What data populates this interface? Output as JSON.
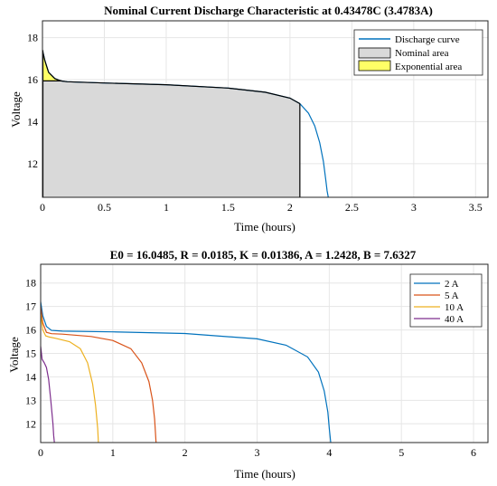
{
  "chart_data": [
    {
      "type": "line",
      "title": "Nominal Current Discharge Characteristic at 0.43478C (3.4783A)",
      "xlabel": "Time (hours)",
      "ylabel": "Voltage",
      "xlim": [
        0,
        3.6
      ],
      "ylim": [
        10.4,
        18.8
      ],
      "xticks": [
        0,
        0.5,
        1,
        1.5,
        2,
        2.5,
        3,
        3.5
      ],
      "xtick_labels": [
        "0",
        "0.5",
        "1",
        "1.5",
        "2",
        "2.5",
        "3",
        "3.5"
      ],
      "yticks": [
        12,
        14,
        16,
        18
      ],
      "ytick_labels": [
        "12",
        "14",
        "16",
        "18"
      ],
      "grid": true,
      "legend_position": "top-right",
      "series": [
        {
          "name": "Discharge curve",
          "color": "#0072BD",
          "x": [
            0,
            0.02,
            0.05,
            0.1,
            0.15,
            0.2,
            0.5,
            1.0,
            1.5,
            1.8,
            2.0,
            2.08,
            2.15,
            2.2,
            2.24,
            2.27,
            2.29,
            2.3,
            2.31
          ],
          "y": [
            17.4,
            16.9,
            16.35,
            16.05,
            15.94,
            15.9,
            15.84,
            15.76,
            15.6,
            15.4,
            15.12,
            14.86,
            14.4,
            13.8,
            13.0,
            12.1,
            11.2,
            10.7,
            10.4
          ]
        },
        {
          "name": "Nominal area",
          "color": "#d9d9d9",
          "x": [
            0,
            0.15,
            0.2,
            0.5,
            1.0,
            1.5,
            1.8,
            2.0,
            2.08
          ],
          "y": [
            15.94,
            15.94,
            15.9,
            15.84,
            15.76,
            15.6,
            15.4,
            15.12,
            14.86
          ]
        },
        {
          "name": "Exponential area",
          "color": "#ffff66",
          "x": [
            0,
            0.02,
            0.05,
            0.1,
            0.15
          ],
          "y": [
            17.4,
            16.9,
            16.35,
            16.05,
            15.94
          ]
        }
      ]
    },
    {
      "type": "line",
      "title": "E0 = 16.0485, R = 0.0185, K = 0.01386, A = 1.2428, B = 7.6327",
      "xlabel": "Time (hours)",
      "ylabel": "Voltage",
      "xlim": [
        0,
        6.2
      ],
      "ylim": [
        11.2,
        18.8
      ],
      "xticks": [
        0,
        1,
        2,
        3,
        4,
        5,
        6
      ],
      "xtick_labels": [
        "0",
        "1",
        "2",
        "3",
        "4",
        "5",
        "6"
      ],
      "yticks": [
        12,
        13,
        14,
        15,
        16,
        17,
        18
      ],
      "ytick_labels": [
        "12",
        "13",
        "14",
        "15",
        "16",
        "17",
        "18"
      ],
      "grid": true,
      "legend_position": "top-right",
      "series": [
        {
          "name": "2 A",
          "color": "#0072BD",
          "x": [
            0,
            0.03,
            0.08,
            0.15,
            0.3,
            1.0,
            2.0,
            3.0,
            3.4,
            3.7,
            3.85,
            3.93,
            3.98,
            4.0,
            4.02
          ],
          "y": [
            17.2,
            16.6,
            16.15,
            15.98,
            15.95,
            15.92,
            15.85,
            15.62,
            15.35,
            14.85,
            14.2,
            13.4,
            12.5,
            11.8,
            11.2
          ]
        },
        {
          "name": "5 A",
          "color": "#D95319",
          "x": [
            0,
            0.03,
            0.08,
            0.15,
            0.3,
            0.7,
            1.0,
            1.25,
            1.4,
            1.5,
            1.55,
            1.58,
            1.6
          ],
          "y": [
            17.0,
            16.3,
            15.9,
            15.84,
            15.82,
            15.72,
            15.55,
            15.2,
            14.6,
            13.8,
            13.0,
            12.2,
            11.2
          ]
        },
        {
          "name": "10 A",
          "color": "#EDB120",
          "x": [
            0,
            0.03,
            0.07,
            0.12,
            0.2,
            0.4,
            0.55,
            0.65,
            0.72,
            0.76,
            0.79,
            0.8
          ],
          "y": [
            16.7,
            16.0,
            15.75,
            15.7,
            15.65,
            15.5,
            15.2,
            14.6,
            13.7,
            12.8,
            11.8,
            11.2
          ]
        },
        {
          "name": "40 A",
          "color": "#7E2F8E",
          "x": [
            0,
            0.02,
            0.05,
            0.08,
            0.11,
            0.14,
            0.17,
            0.18,
            0.19
          ],
          "y": [
            15.3,
            14.75,
            14.6,
            14.4,
            13.9,
            13.0,
            12.0,
            11.5,
            11.2
          ]
        }
      ]
    }
  ]
}
